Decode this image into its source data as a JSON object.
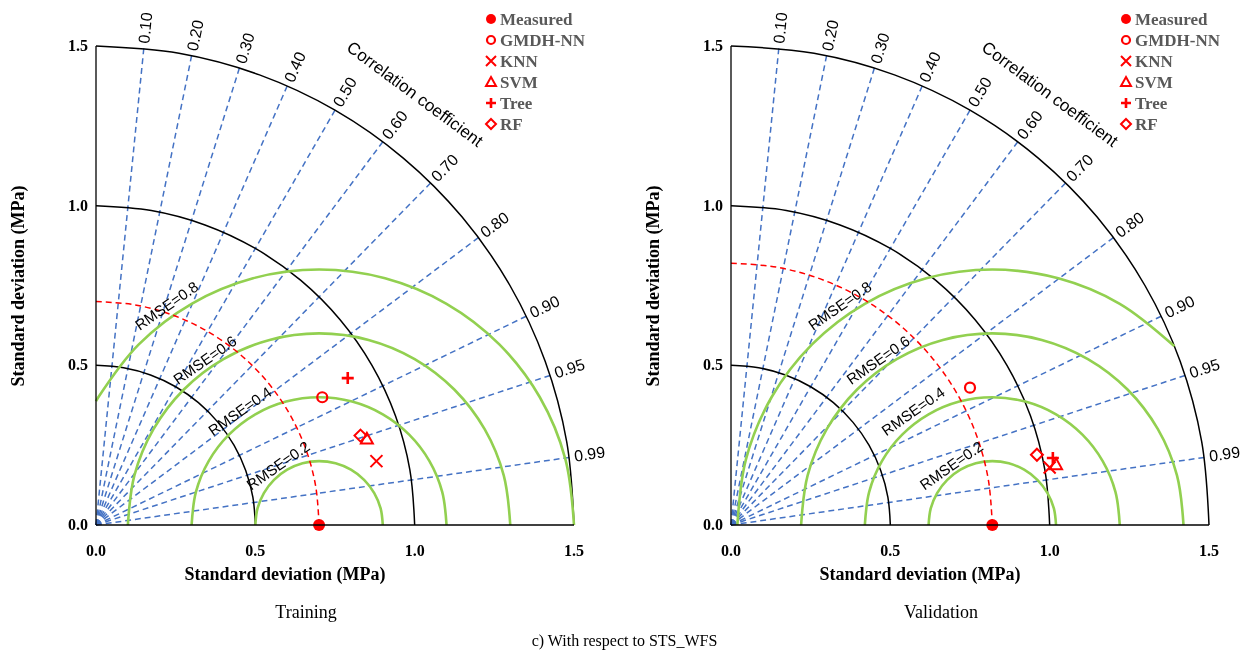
{
  "chart_data": [
    {
      "type": "scatter",
      "title": "Training",
      "xlabel": "Standard deviation (MPa)",
      "ylabel": "Standard deviation (MPa)",
      "xlim": [
        0,
        1.5
      ],
      "ylim": [
        0,
        1.5
      ],
      "xticks": [
        {
          "value": 0,
          "label": "0.0"
        },
        {
          "value": 0.5,
          "label": "0.5"
        },
        {
          "value": 1,
          "label": "1.0"
        },
        {
          "value": 1.5,
          "label": "1.5"
        }
      ],
      "yticks": [
        {
          "value": 0,
          "label": "0.0"
        },
        {
          "value": 0.5,
          "label": "0.5"
        },
        {
          "value": 1,
          "label": "1.0"
        },
        {
          "value": 1.5,
          "label": "1.5"
        }
      ],
      "grid": false,
      "legend": "top right",
      "annotations": [
        "Correlation coefficient",
        "c) With respect to STS_WFS",
        {
          "text": "0.10",
          "x": 0.15,
          "y": 1.4925
        },
        {
          "text": "0.20",
          "x": 0.3,
          "y": 1.4697
        },
        {
          "text": "0.30",
          "x": 0.45,
          "y": 1.4309
        },
        {
          "text": "0.40",
          "x": 0.6,
          "y": 1.3748
        },
        {
          "text": "0.50",
          "x": 0.75,
          "y": 1.299
        },
        {
          "text": "0.60",
          "x": 0.9,
          "y": 1.2
        },
        {
          "text": "0.70",
          "x": 1.05,
          "y": 1.0712
        },
        {
          "text": "0.80",
          "x": 1.2,
          "y": 0.9
        },
        {
          "text": "0.90",
          "x": 1.35,
          "y": 0.6538
        },
        {
          "text": "0.95",
          "x": 1.425,
          "y": 0.4684
        },
        {
          "text": "0.99",
          "x": 1.485,
          "y": 0.2116
        },
        {
          "text": "RMSE=0.8",
          "x": 0.24,
          "y": 0.66
        },
        {
          "text": "RMSE=0.6",
          "x": 0.36,
          "y": 0.49
        },
        {
          "text": "RMSE=0.4",
          "x": 0.47,
          "y": 0.33
        },
        {
          "text": "RMSE=0.2",
          "x": 0.59,
          "y": 0.16
        }
      ],
      "series": [
        {
          "type": "line",
          "color": "#4472c4",
          "line_style": "dashed",
          "x": [
            0,
            0.15
          ],
          "values": [
            0,
            1.4925
          ]
        },
        {
          "type": "line",
          "color": "#4472c4",
          "line_style": "dashed",
          "x": [
            0,
            0.3
          ],
          "values": [
            0,
            1.4697
          ]
        },
        {
          "type": "line",
          "color": "#4472c4",
          "line_style": "dashed",
          "x": [
            0,
            0.45
          ],
          "values": [
            0,
            1.4309
          ]
        },
        {
          "type": "line",
          "color": "#4472c4",
          "line_style": "dashed",
          "x": [
            0,
            0.6
          ],
          "values": [
            0,
            1.3748
          ]
        },
        {
          "type": "line",
          "color": "#4472c4",
          "line_style": "dashed",
          "x": [
            0,
            0.75
          ],
          "values": [
            0,
            1.299
          ]
        },
        {
          "type": "line",
          "color": "#4472c4",
          "line_style": "dashed",
          "x": [
            0,
            0.9
          ],
          "values": [
            0,
            1.2
          ]
        },
        {
          "type": "line",
          "color": "#4472c4",
          "line_style": "dashed",
          "x": [
            0,
            1.05
          ],
          "values": [
            0,
            1.0712
          ]
        },
        {
          "type": "line",
          "color": "#4472c4",
          "line_style": "dashed",
          "x": [
            0,
            1.2
          ],
          "values": [
            0,
            0.9
          ]
        },
        {
          "type": "line",
          "color": "#4472c4",
          "line_style": "dashed",
          "x": [
            0,
            1.35
          ],
          "values": [
            0,
            0.6538
          ]
        },
        {
          "type": "line",
          "color": "#4472c4",
          "line_style": "dashed",
          "x": [
            0,
            1.425
          ],
          "values": [
            0,
            0.4684
          ]
        },
        {
          "type": "line",
          "color": "#4472c4",
          "line_style": "dashed",
          "x": [
            0,
            1.485
          ],
          "values": [
            0,
            0.2116
          ]
        },
        {
          "type": "line",
          "color": "#000000",
          "line_style": "solid",
          "x": [
            0.5,
            0.4924,
            0.4698,
            0.433,
            0.383,
            0.3214,
            0.25,
            0.171,
            0.0868,
            0
          ],
          "values": [
            0,
            0.0868,
            0.171,
            0.25,
            0.3214,
            0.383,
            0.433,
            0.4698,
            0.4924,
            0.5
          ]
        },
        {
          "type": "line",
          "color": "#000000",
          "line_style": "solid",
          "x": [
            1,
            0.9848,
            0.9397,
            0.866,
            0.766,
            0.6428,
            0.5,
            0.342,
            0.1736,
            0
          ],
          "values": [
            0,
            0.1736,
            0.342,
            0.5,
            0.6428,
            0.766,
            0.866,
            0.9397,
            0.9848,
            1
          ]
        },
        {
          "type": "line",
          "color": "#000000",
          "line_style": "solid",
          "x": [
            1.5,
            1.4772,
            1.4095,
            1.299,
            1.149,
            0.9642,
            0.75,
            0.513,
            0.2604,
            0
          ],
          "values": [
            0,
            0.2604,
            0.513,
            0.75,
            0.9642,
            1.149,
            1.299,
            1.4095,
            1.4772,
            1.5
          ]
        },
        {
          "type": "line",
          "color": "#92d050",
          "line_style": "solid",
          "x": [
            0.9,
            0.8932,
            0.8732,
            0.8414,
            0.8,
            0.7518,
            0.7,
            0.6482,
            0.6,
            0.5586,
            0.5268,
            0.5068,
            0.5
          ],
          "values": [
            0,
            0.0518,
            0.1,
            0.1414,
            0.1732,
            0.1932,
            0.2,
            0.1932,
            0.1732,
            0.1414,
            0.1,
            0.0518,
            0
          ]
        },
        {
          "type": "line",
          "color": "#92d050",
          "line_style": "solid",
          "x": [
            1.1,
            1.0864,
            1.0464,
            0.9828,
            0.9,
            0.8035,
            0.7,
            0.5965,
            0.5,
            0.4172,
            0.3536,
            0.3136,
            0.3
          ],
          "values": [
            0,
            0.1035,
            0.2,
            0.2828,
            0.3464,
            0.3864,
            0.4,
            0.3864,
            0.3464,
            0.2828,
            0.2,
            0.1035,
            0
          ]
        },
        {
          "type": "line",
          "color": "#92d050",
          "line_style": "solid",
          "x": [
            1.3,
            1.2795,
            1.2196,
            1.1243,
            1,
            0.8553,
            0.7,
            0.5447,
            0.4,
            0.2757,
            0.1804,
            0.1205,
            0.1
          ],
          "values": [
            0,
            0.1553,
            0.3,
            0.4243,
            0.5196,
            0.5796,
            0.6,
            0.5796,
            0.5196,
            0.4243,
            0.3,
            0.1553,
            0
          ]
        },
        {
          "type": "line",
          "color": "#92d050",
          "line_style": "solid",
          "x": [
            1.5,
            1.4727,
            1.3928,
            1.2657,
            1.1,
            0.9071,
            0.7,
            0.4929,
            0.3,
            0.1343,
            0.0072,
            0
          ],
          "values": [
            0,
            0.2071,
            0.4,
            0.5657,
            0.6928,
            0.7727,
            0.8,
            0.7727,
            0.6928,
            0.5657,
            0.4,
            0.3873
          ]
        },
        {
          "type": "line",
          "color": "#ff0000",
          "line_style": "dashed",
          "x": [
            0.7,
            0.6894,
            0.6578,
            0.6062,
            0.5362,
            0.45,
            0.35,
            0.2394,
            0.1215,
            0
          ],
          "values": [
            0,
            0.1215,
            0.2394,
            0.35,
            0.45,
            0.5362,
            0.6062,
            0.6578,
            0.6894,
            0.7
          ]
        },
        {
          "type": "scatter",
          "name": "Measured",
          "color": "#ff0000",
          "marker": "circle",
          "x": [
            0.7
          ],
          "values": [
            0
          ]
        },
        {
          "type": "scatter",
          "name": "GMDH-NN",
          "color": "#ff0000",
          "marker": "circle-open",
          "x": [
            0.71
          ],
          "values": [
            0.4
          ]
        },
        {
          "type": "scatter",
          "name": "KNN",
          "color": "#ff0000",
          "marker": "cross",
          "x": [
            0.88
          ],
          "values": [
            0.2
          ]
        },
        {
          "type": "scatter",
          "name": "SVM",
          "color": "#ff0000",
          "marker": "triangle",
          "x": [
            0.85
          ],
          "values": [
            0.27
          ]
        },
        {
          "type": "scatter",
          "name": "Tree",
          "color": "#ff0000",
          "marker": "plus",
          "x": [
            0.79
          ],
          "values": [
            0.46
          ]
        },
        {
          "type": "scatter",
          "name": "RF",
          "color": "#ff0000",
          "marker": "diamond",
          "x": [
            0.83
          ],
          "values": [
            0.28
          ]
        }
      ]
    },
    {
      "type": "scatter",
      "title": "Validation",
      "xlabel": "Standard deviation (MPa)",
      "ylabel": "Standard deviation (MPa)",
      "xlim": [
        0,
        1.5
      ],
      "ylim": [
        0,
        1.5
      ],
      "xticks": [
        {
          "value": 0,
          "label": "0.0"
        },
        {
          "value": 0.5,
          "label": "0.5"
        },
        {
          "value": 1,
          "label": "1.0"
        },
        {
          "value": 1.5,
          "label": "1.5"
        }
      ],
      "yticks": [
        {
          "value": 0,
          "label": "0.0"
        },
        {
          "value": 0.5,
          "label": "0.5"
        },
        {
          "value": 1,
          "label": "1.0"
        },
        {
          "value": 1.5,
          "label": "1.5"
        }
      ],
      "grid": false,
      "legend": "top right",
      "annotations": [
        "Correlation coefficient",
        {
          "text": "0.10",
          "x": 0.15,
          "y": 1.4925
        },
        {
          "text": "0.20",
          "x": 0.3,
          "y": 1.4697
        },
        {
          "text": "0.30",
          "x": 0.45,
          "y": 1.4309
        },
        {
          "text": "0.40",
          "x": 0.6,
          "y": 1.3748
        },
        {
          "text": "0.50",
          "x": 0.75,
          "y": 1.299
        },
        {
          "text": "0.60",
          "x": 0.9,
          "y": 1.2
        },
        {
          "text": "0.70",
          "x": 1.05,
          "y": 1.0712
        },
        {
          "text": "0.80",
          "x": 1.2,
          "y": 0.9
        },
        {
          "text": "0.90",
          "x": 1.35,
          "y": 0.6538
        },
        {
          "text": "0.95",
          "x": 1.425,
          "y": 0.4684
        },
        {
          "text": "0.99",
          "x": 1.485,
          "y": 0.2116
        },
        {
          "text": "RMSE=0.8",
          "x": 0.36,
          "y": 0.66
        },
        {
          "text": "RMSE=0.6",
          "x": 0.48,
          "y": 0.49
        },
        {
          "text": "RMSE=0.4",
          "x": 0.59,
          "y": 0.33
        },
        {
          "text": "RMSE=0.2",
          "x": 0.71,
          "y": 0.16
        }
      ],
      "series": [
        {
          "type": "line",
          "color": "#4472c4",
          "line_style": "dashed",
          "x": [
            0,
            0.15
          ],
          "values": [
            0,
            1.4925
          ]
        },
        {
          "type": "line",
          "color": "#4472c4",
          "line_style": "dashed",
          "x": [
            0,
            0.3
          ],
          "values": [
            0,
            1.4697
          ]
        },
        {
          "type": "line",
          "color": "#4472c4",
          "line_style": "dashed",
          "x": [
            0,
            0.45
          ],
          "values": [
            0,
            1.4309
          ]
        },
        {
          "type": "line",
          "color": "#4472c4",
          "line_style": "dashed",
          "x": [
            0,
            0.6
          ],
          "values": [
            0,
            1.3748
          ]
        },
        {
          "type": "line",
          "color": "#4472c4",
          "line_style": "dashed",
          "x": [
            0,
            0.75
          ],
          "values": [
            0,
            1.299
          ]
        },
        {
          "type": "line",
          "color": "#4472c4",
          "line_style": "dashed",
          "x": [
            0,
            0.9
          ],
          "values": [
            0,
            1.2
          ]
        },
        {
          "type": "line",
          "color": "#4472c4",
          "line_style": "dashed",
          "x": [
            0,
            1.05
          ],
          "values": [
            0,
            1.0712
          ]
        },
        {
          "type": "line",
          "color": "#4472c4",
          "line_style": "dashed",
          "x": [
            0,
            1.2
          ],
          "values": [
            0,
            0.9
          ]
        },
        {
          "type": "line",
          "color": "#4472c4",
          "line_style": "dashed",
          "x": [
            0,
            1.35
          ],
          "values": [
            0,
            0.6538
          ]
        },
        {
          "type": "line",
          "color": "#4472c4",
          "line_style": "dashed",
          "x": [
            0,
            1.425
          ],
          "values": [
            0,
            0.4684
          ]
        },
        {
          "type": "line",
          "color": "#4472c4",
          "line_style": "dashed",
          "x": [
            0,
            1.485
          ],
          "values": [
            0,
            0.2116
          ]
        },
        {
          "type": "line",
          "color": "#000000",
          "line_style": "solid",
          "x": [
            0.5,
            0.4924,
            0.4698,
            0.433,
            0.383,
            0.3214,
            0.25,
            0.171,
            0.0868,
            0
          ],
          "values": [
            0,
            0.0868,
            0.171,
            0.25,
            0.3214,
            0.383,
            0.433,
            0.4698,
            0.4924,
            0.5
          ]
        },
        {
          "type": "line",
          "color": "#000000",
          "line_style": "solid",
          "x": [
            1,
            0.9848,
            0.9397,
            0.866,
            0.766,
            0.6428,
            0.5,
            0.342,
            0.1736,
            0
          ],
          "values": [
            0,
            0.1736,
            0.342,
            0.5,
            0.6428,
            0.766,
            0.866,
            0.9397,
            0.9848,
            1
          ]
        },
        {
          "type": "line",
          "color": "#000000",
          "line_style": "solid",
          "x": [
            1.5,
            1.4772,
            1.4095,
            1.299,
            1.149,
            0.9642,
            0.75,
            0.513,
            0.2604,
            0
          ],
          "values": [
            0,
            0.2604,
            0.513,
            0.75,
            0.9642,
            1.149,
            1.299,
            1.4095,
            1.4772,
            1.5
          ]
        },
        {
          "type": "line",
          "color": "#92d050",
          "line_style": "solid",
          "x": [
            1.02,
            1.0132,
            0.9932,
            0.9614,
            0.92,
            0.8718,
            0.82,
            0.7682,
            0.72,
            0.6786,
            0.6468,
            0.6268,
            0.62
          ],
          "values": [
            0,
            0.0518,
            0.1,
            0.1414,
            0.1732,
            0.1932,
            0.2,
            0.1932,
            0.1732,
            0.1414,
            0.1,
            0.0518,
            0
          ]
        },
        {
          "type": "line",
          "color": "#92d050",
          "line_style": "solid",
          "x": [
            1.22,
            1.2064,
            1.1664,
            1.1028,
            1.02,
            0.9235,
            0.82,
            0.7165,
            0.62,
            0.5372,
            0.4736,
            0.4336,
            0.42
          ],
          "values": [
            0,
            0.1035,
            0.2,
            0.2828,
            0.3464,
            0.3864,
            0.4,
            0.3864,
            0.3464,
            0.2828,
            0.2,
            0.1035,
            0
          ]
        },
        {
          "type": "line",
          "color": "#92d050",
          "line_style": "solid",
          "x": [
            1.42,
            1.3995,
            1.3396,
            1.2443,
            1.12,
            0.9753,
            0.82,
            0.6647,
            0.52,
            0.3957,
            0.3004,
            0.2405,
            0.22
          ],
          "values": [
            0,
            0.1553,
            0.3,
            0.4243,
            0.5196,
            0.5796,
            0.6,
            0.5796,
            0.5196,
            0.4243,
            0.3,
            0.1553,
            0
          ]
        },
        {
          "type": "line",
          "color": "#92d050",
          "line_style": "solid",
          "x": [
            1.3917,
            1.22,
            1.0271,
            0.82,
            0.6129,
            0.42,
            0.2543,
            0.1272,
            0.0473,
            0.02
          ],
          "values": [
            0.5596,
            0.6928,
            0.7727,
            0.8,
            0.7727,
            0.6928,
            0.5657,
            0.4,
            0.2071,
            0
          ]
        },
        {
          "type": "line",
          "color": "#ff0000",
          "line_style": "dashed",
          "x": [
            0.82,
            0.8075,
            0.7706,
            0.7101,
            0.6281,
            0.5271,
            0.41,
            0.2804,
            0.1424,
            0
          ],
          "values": [
            0,
            0.1424,
            0.2804,
            0.41,
            0.5271,
            0.6281,
            0.7101,
            0.7706,
            0.8075,
            0.82
          ]
        },
        {
          "type": "scatter",
          "name": "Measured",
          "color": "#ff0000",
          "marker": "circle",
          "x": [
            0.82
          ],
          "values": [
            0
          ]
        },
        {
          "type": "scatter",
          "name": "GMDH-NN",
          "color": "#ff0000",
          "marker": "circle-open",
          "x": [
            0.75
          ],
          "values": [
            0.43
          ]
        },
        {
          "type": "scatter",
          "name": "KNN",
          "color": "#ff0000",
          "marker": "cross",
          "x": [
            1.0
          ],
          "values": [
            0.18
          ]
        },
        {
          "type": "scatter",
          "name": "SVM",
          "color": "#ff0000",
          "marker": "triangle",
          "x": [
            1.02
          ],
          "values": [
            0.19
          ]
        },
        {
          "type": "scatter",
          "name": "Tree",
          "color": "#ff0000",
          "marker": "plus",
          "x": [
            1.01
          ],
          "values": [
            0.21
          ]
        },
        {
          "type": "scatter",
          "name": "RF",
          "color": "#ff0000",
          "marker": "diamond",
          "x": [
            0.96
          ],
          "values": [
            0.22
          ]
        }
      ]
    }
  ]
}
